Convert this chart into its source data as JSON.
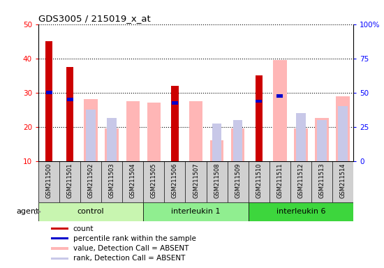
{
  "title": "GDS3005 / 215019_x_at",
  "samples": [
    "GSM211500",
    "GSM211501",
    "GSM211502",
    "GSM211503",
    "GSM211504",
    "GSM211505",
    "GSM211506",
    "GSM211507",
    "GSM211508",
    "GSM211509",
    "GSM211510",
    "GSM211511",
    "GSM211512",
    "GSM211513",
    "GSM211514"
  ],
  "count_values": [
    45,
    37.5,
    null,
    null,
    null,
    null,
    32,
    null,
    null,
    null,
    35,
    null,
    null,
    null,
    null
  ],
  "percentile_values": [
    30,
    28,
    null,
    null,
    null,
    null,
    27,
    null,
    null,
    null,
    27.5,
    29,
    null,
    null,
    null
  ],
  "absent_value_bars": [
    null,
    null,
    28,
    19.5,
    27.5,
    27,
    null,
    27.5,
    16,
    19.5,
    null,
    39.5,
    19.5,
    22.5,
    29
  ],
  "absent_rank_bars": [
    null,
    null,
    25,
    22.5,
    null,
    null,
    null,
    null,
    21,
    22,
    null,
    null,
    24,
    22,
    26
  ],
  "ylim": [
    10,
    50
  ],
  "yticks": [
    10,
    20,
    30,
    40,
    50
  ],
  "y2ticklabels": [
    "0",
    "25",
    "50",
    "75",
    "100%"
  ],
  "groups": [
    {
      "label": "control",
      "start": 0,
      "end": 5,
      "color": "#c8f5b0"
    },
    {
      "label": "interleukin 1",
      "start": 5,
      "end": 10,
      "color": "#90ee90"
    },
    {
      "label": "interleukin 6",
      "start": 10,
      "end": 15,
      "color": "#3dd63d"
    }
  ],
  "agent_label": "agent",
  "count_color": "#cc0000",
  "percentile_color": "#0000cc",
  "absent_value_color": "#ffb6b6",
  "absent_rank_color": "#c8c8e8",
  "bg_color": "#d0d0d0",
  "plot_bg": "#ffffff",
  "legend_items": [
    {
      "color": "#cc0000",
      "label": "count"
    },
    {
      "color": "#0000cc",
      "label": "percentile rank within the sample"
    },
    {
      "color": "#ffb6b6",
      "label": "value, Detection Call = ABSENT"
    },
    {
      "color": "#c8c8e8",
      "label": "rank, Detection Call = ABSENT"
    }
  ]
}
